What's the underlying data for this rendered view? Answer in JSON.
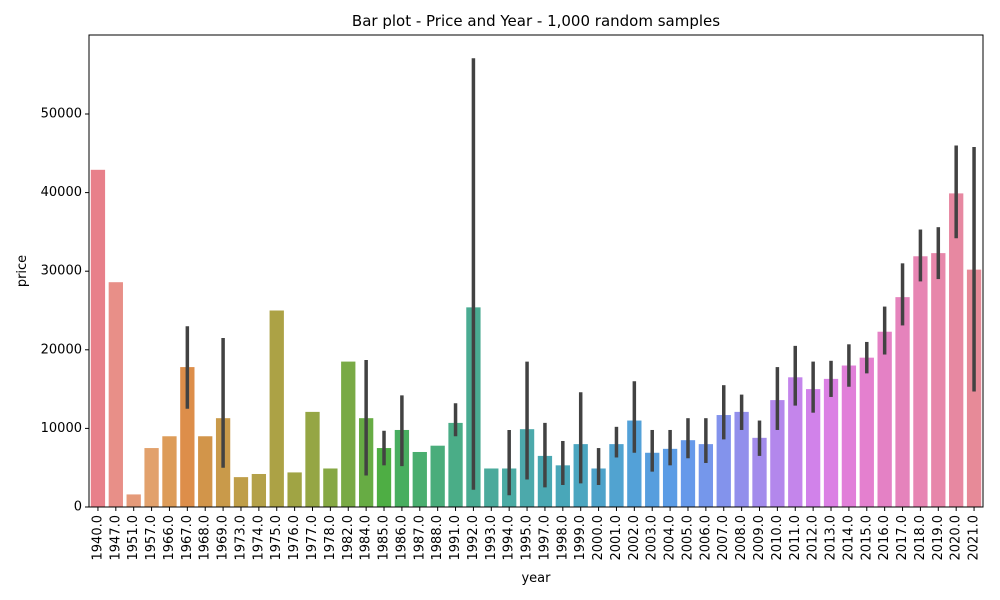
{
  "chart_data": {
    "type": "bar",
    "title": "Bar plot - Price and Year - 1,000 random samples",
    "xlabel": "year",
    "ylabel": "price",
    "ylim": [
      0,
      60000
    ],
    "yticks": [
      "0",
      "10000",
      "20000",
      "30000",
      "40000",
      "50000"
    ],
    "grid": false,
    "categories": [
      "1940.0",
      "1947.0",
      "1951.0",
      "1957.0",
      "1966.0",
      "1967.0",
      "1968.0",
      "1969.0",
      "1973.0",
      "1974.0",
      "1975.0",
      "1976.0",
      "1977.0",
      "1978.0",
      "1982.0",
      "1984.0",
      "1985.0",
      "1986.0",
      "1987.0",
      "1988.0",
      "1991.0",
      "1992.0",
      "1993.0",
      "1994.0",
      "1995.0",
      "1997.0",
      "1998.0",
      "1999.0",
      "2000.0",
      "2001.0",
      "2002.0",
      "2003.0",
      "2004.0",
      "2005.0",
      "2006.0",
      "2007.0",
      "2008.0",
      "2009.0",
      "2010.0",
      "2011.0",
      "2012.0",
      "2013.0",
      "2014.0",
      "2015.0",
      "2016.0",
      "2017.0",
      "2018.0",
      "2019.0",
      "2020.0",
      "2021.0"
    ],
    "values": [
      42900,
      28600,
      1600,
      7500,
      9000,
      17800,
      9000,
      11300,
      3800,
      4200,
      25000,
      4400,
      12100,
      4900,
      18500,
      11300,
      7500,
      9800,
      7000,
      7800,
      10700,
      25400,
      4900,
      4900,
      9900,
      6500,
      5300,
      8000,
      4900,
      8000,
      11000,
      6900,
      7400,
      8500,
      8000,
      11700,
      12100,
      8800,
      13600,
      16500,
      15000,
      16300,
      18000,
      19000,
      22300,
      26700,
      31900,
      32300,
      39900,
      30200
    ],
    "ci_low": [
      null,
      null,
      null,
      null,
      null,
      12500,
      null,
      5000,
      null,
      null,
      null,
      null,
      null,
      null,
      null,
      4000,
      5300,
      5200,
      null,
      null,
      9000,
      2200,
      null,
      1500,
      3500,
      2500,
      2800,
      3000,
      2800,
      6300,
      6900,
      4500,
      5300,
      6200,
      5600,
      8600,
      9800,
      6500,
      9800,
      12900,
      12000,
      14000,
      15300,
      17000,
      19400,
      23100,
      28700,
      29000,
      34200,
      14700
    ],
    "ci_high": [
      null,
      null,
      null,
      null,
      null,
      23000,
      null,
      21500,
      null,
      null,
      null,
      null,
      null,
      null,
      null,
      18700,
      9700,
      14200,
      null,
      null,
      13200,
      57100,
      null,
      9800,
      18500,
      10700,
      8400,
      14600,
      7500,
      10200,
      16000,
      9800,
      9800,
      11300,
      11300,
      15500,
      14300,
      11000,
      17800,
      20500,
      18500,
      18600,
      20700,
      21000,
      25500,
      31000,
      35300,
      35600,
      46000,
      45800
    ],
    "colors": [
      "#e8808a",
      "#e88f88",
      "#e59a79",
      "#e2a16c",
      "#dd9c59",
      "#dd8e4a",
      "#d2954a",
      "#c99a4a",
      "#bf9e48",
      "#b4a149",
      "#aca245",
      "#a0a444",
      "#95a644",
      "#86a844",
      "#79aa45",
      "#67ac44",
      "#4eae44",
      "#48ae60",
      "#4aae6f",
      "#4aad7b",
      "#4aad87",
      "#4aab92",
      "#4baa9c",
      "#4baba4",
      "#4ca9ab",
      "#4aa8b2",
      "#49a7b9",
      "#4ba6c0",
      "#4ea3ca",
      "#51a3d0",
      "#53a1d8",
      "#579ede",
      "#5b9ce5",
      "#6699ea",
      "#7597eb",
      "#8393ec",
      "#928fec",
      "#a38cec",
      "#b387ec",
      "#c485eb",
      "#d182ea",
      "#db80e4",
      "#e17fd9",
      "#e480cf",
      "#e481c5",
      "#e583bc",
      "#e785b3",
      "#e787aa",
      "#e788a1",
      "#e78a98"
    ],
    "ci_color": "#424242"
  }
}
